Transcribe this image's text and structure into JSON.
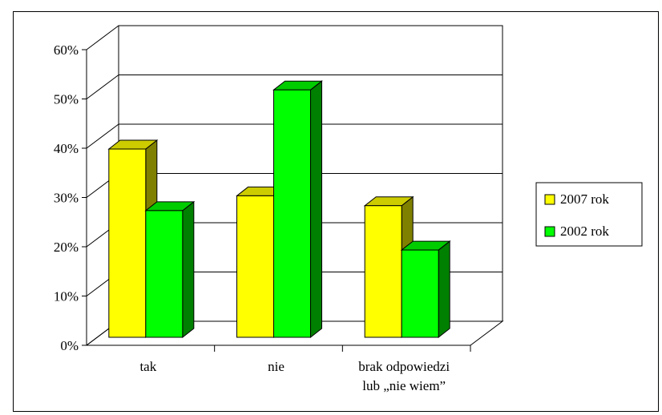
{
  "chart_data": {
    "type": "bar",
    "title": "",
    "xlabel": "",
    "ylabel": "",
    "categories": [
      [
        "tak"
      ],
      [
        "nie"
      ],
      [
        "brak odpowiedzi",
        "lub „nie wiem”"
      ]
    ],
    "series": [
      {
        "name": "2007 rok",
        "values": [
          40,
          30.5,
          28.5
        ],
        "color": "#FFFF00",
        "top_color": "#CCCC00",
        "side_color": "#808000"
      },
      {
        "name": "2002 rok",
        "values": [
          27.5,
          52,
          19.5
        ],
        "color": "#00FF00",
        "top_color": "#00CC00",
        "side_color": "#008000"
      }
    ],
    "ylim": [
      0,
      60
    ],
    "yticks": [
      "0%",
      "10%",
      "20%",
      "30%",
      "40%",
      "50%",
      "60%"
    ],
    "grid": true,
    "legend_position": "right"
  }
}
